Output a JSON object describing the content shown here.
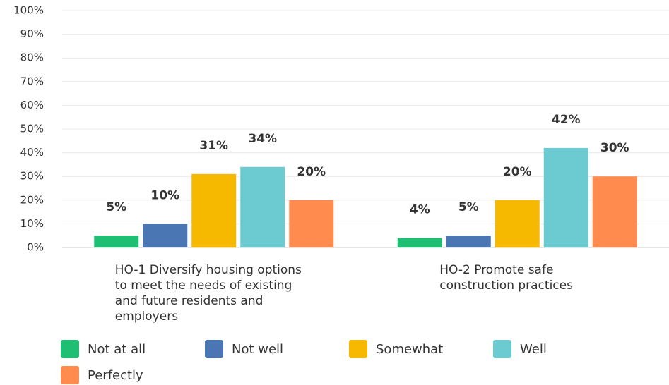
{
  "chart_data": {
    "type": "bar",
    "categories": [
      "HO-1 Diversify housing options to meet the needs of existing and future residents and employers",
      "HO-2 Promote safe construction practices"
    ],
    "series": [
      {
        "name": "Not at all",
        "color": "#1ebf73",
        "values": [
          5,
          4
        ],
        "value_labels": [
          "5%",
          "4%"
        ]
      },
      {
        "name": "Not well",
        "color": "#4a77b4",
        "values": [
          10,
          5
        ],
        "value_labels": [
          "10%",
          "5%"
        ]
      },
      {
        "name": "Somewhat",
        "color": "#f7b900",
        "values": [
          31,
          20
        ],
        "value_labels": [
          "31%",
          "20%"
        ]
      },
      {
        "name": "Well",
        "color": "#6ccbd0",
        "values": [
          34,
          42
        ],
        "value_labels": [
          "34%",
          "42%"
        ]
      },
      {
        "name": "Perfectly",
        "color": "#ff8b4f",
        "values": [
          20,
          30
        ],
        "value_labels": [
          "20%",
          "30%"
        ]
      }
    ],
    "ylim": [
      0,
      100
    ],
    "yticks": [
      {
        "value": 0,
        "label": "0%"
      },
      {
        "value": 10,
        "label": "10%"
      },
      {
        "value": 20,
        "label": "20%"
      },
      {
        "value": 30,
        "label": "30%"
      },
      {
        "value": 40,
        "label": "40%"
      },
      {
        "value": 50,
        "label": "50%"
      },
      {
        "value": 60,
        "label": "60%"
      },
      {
        "value": 70,
        "label": "70%"
      },
      {
        "value": 80,
        "label": "80%"
      },
      {
        "value": 90,
        "label": "90%"
      },
      {
        "value": 100,
        "label": "100%"
      }
    ],
    "grid": true
  }
}
